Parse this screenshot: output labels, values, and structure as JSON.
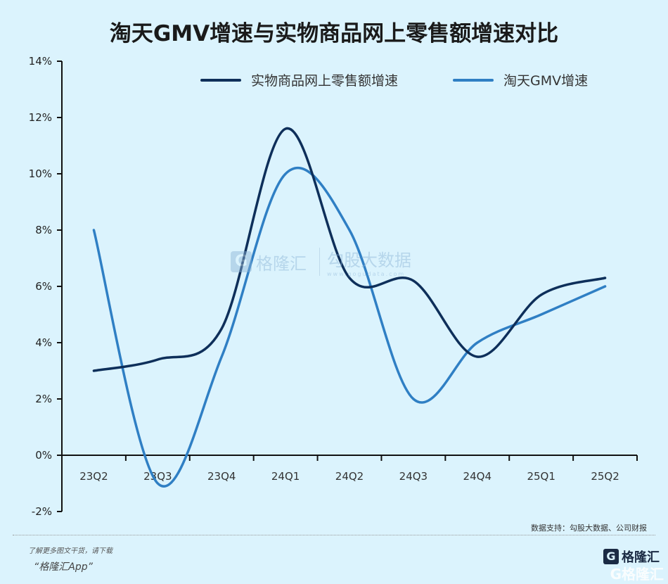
{
  "title": "淘天GMV增速与实物商品网上零售额增速对比",
  "chart_data": {
    "type": "line",
    "title": "淘天GMV增速与实物商品网上零售额增速对比",
    "xlabel": "",
    "ylabel": "",
    "categories": [
      "23Q2",
      "23Q3",
      "23Q4",
      "24Q1",
      "24Q2",
      "24Q3",
      "24Q4",
      "25Q1",
      "25Q2"
    ],
    "ylim": [
      -2,
      14
    ],
    "yticks": [
      -2,
      0,
      2,
      4,
      6,
      8,
      10,
      12,
      14
    ],
    "ytick_labels": [
      "-2%",
      "0%",
      "2%",
      "4%",
      "6%",
      "8%",
      "10%",
      "12%",
      "14%"
    ],
    "grid": false,
    "smooth": true,
    "legend_position": "top-right",
    "series": [
      {
        "name": "实物商品网上零售额增速",
        "color": "#0e2f5a",
        "values": [
          3.0,
          3.4,
          4.5,
          11.6,
          6.3,
          6.2,
          3.5,
          5.7,
          6.3
        ]
      },
      {
        "name": "淘天GMV增速",
        "color": "#2f7fc4",
        "values": [
          8.0,
          -1.0,
          3.5,
          10.0,
          8.0,
          2.0,
          4.0,
          5.0,
          6.0
        ]
      }
    ]
  },
  "watermark": {
    "brand": "格隆汇",
    "brand_icon": "G",
    "partner": "勾股大数据",
    "partner_url": "www.gogudata.com"
  },
  "source": "数据支持：勾股大数据、公司财报",
  "footer": {
    "note": "了解更多图文干货，请下载",
    "app": "“格隆汇App”"
  },
  "logo": {
    "icon": "G",
    "name": "格隆汇",
    "ghost": "G格隆汇"
  }
}
